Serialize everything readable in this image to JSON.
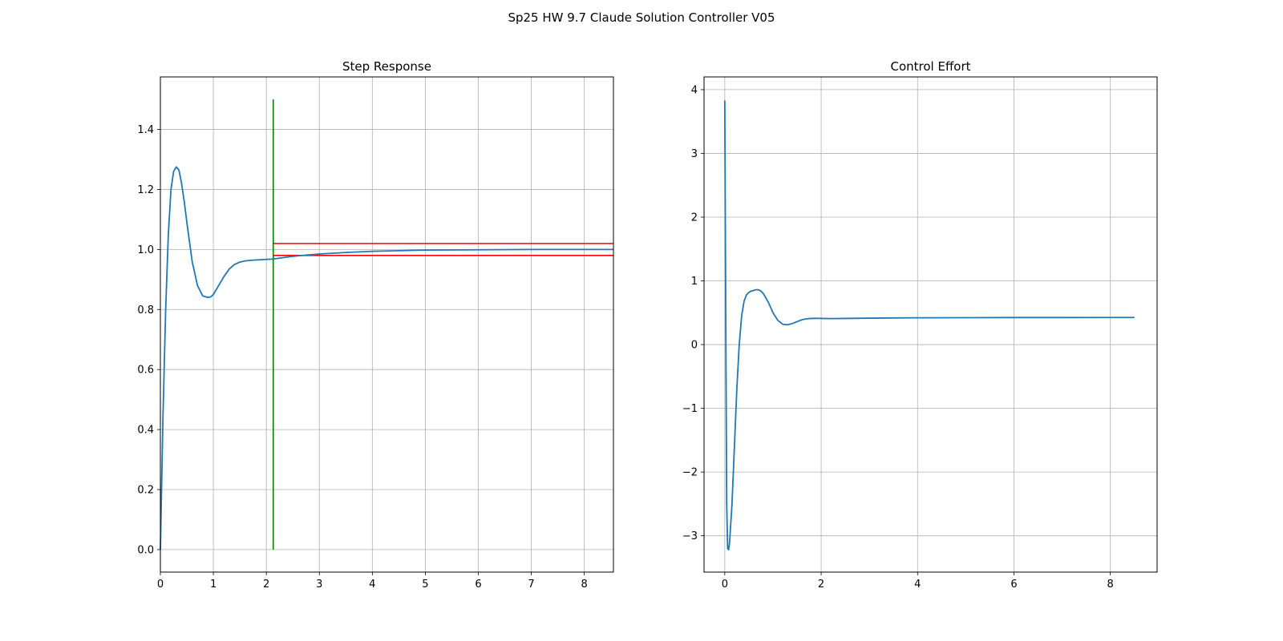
{
  "figure": {
    "suptitle": "Sp25 HW 9.7 Claude Solution Controller V05"
  },
  "chart_data": [
    {
      "type": "line",
      "title": "Step Response",
      "xlabel": "",
      "ylabel": "",
      "xlim": [
        0,
        8.55
      ],
      "ylim": [
        -0.075,
        1.575
      ],
      "xticks": [
        0,
        1,
        2,
        3,
        4,
        5,
        6,
        7,
        8
      ],
      "yticks": [
        0.0,
        0.2,
        0.4,
        0.6,
        0.8,
        1.0,
        1.2,
        1.4
      ],
      "ytick_labels": [
        "0.0",
        "0.2",
        "0.4",
        "0.6",
        "0.8",
        "1.0",
        "1.2",
        "1.4"
      ],
      "grid": true,
      "series": [
        {
          "color": "#1f77b4",
          "x": [
            0,
            0.05,
            0.1,
            0.15,
            0.2,
            0.25,
            0.3,
            0.35,
            0.4,
            0.45,
            0.5,
            0.6,
            0.7,
            0.8,
            0.9,
            0.95,
            1.0,
            1.1,
            1.2,
            1.3,
            1.4,
            1.5,
            1.6,
            1.7,
            1.8,
            1.9,
            2.0,
            2.1,
            2.2,
            2.4,
            2.6,
            2.8,
            3.0,
            3.5,
            4.0,
            4.5,
            5.0,
            6.0,
            7.0,
            8.0,
            8.55
          ],
          "y": [
            0.0,
            0.45,
            0.8,
            1.05,
            1.2,
            1.26,
            1.275,
            1.265,
            1.22,
            1.16,
            1.09,
            0.96,
            0.88,
            0.845,
            0.84,
            0.842,
            0.85,
            0.88,
            0.91,
            0.935,
            0.95,
            0.958,
            0.962,
            0.964,
            0.965,
            0.966,
            0.967,
            0.968,
            0.97,
            0.975,
            0.979,
            0.982,
            0.985,
            0.99,
            0.994,
            0.996,
            0.998,
            0.999,
            1.0,
            1.0,
            1.0
          ]
        }
      ],
      "markers": {
        "settling_time_line": {
          "x": 2.13,
          "y_from": 0.0,
          "y_to": 1.5,
          "color": "#008000"
        },
        "band_lines": [
          {
            "y": 1.02,
            "x_from": 2.13,
            "x_to": 8.55,
            "color": "#ff0000"
          },
          {
            "y": 0.98,
            "x_from": 2.13,
            "x_to": 8.55,
            "color": "#ff0000"
          }
        ]
      }
    },
    {
      "type": "line",
      "title": "Control Effort",
      "xlabel": "",
      "ylabel": "",
      "xlim": [
        -0.43,
        8.97
      ],
      "ylim": [
        -3.57,
        4.2
      ],
      "xticks": [
        0,
        2,
        4,
        6,
        8
      ],
      "yticks": [
        -3,
        -2,
        -1,
        0,
        1,
        2,
        3,
        4
      ],
      "ytick_labels": [
        "−3",
        "−2",
        "−1",
        "0",
        "1",
        "2",
        "3",
        "4"
      ],
      "grid": true,
      "series": [
        {
          "color": "#1f77b4",
          "x": [
            0,
            0.02,
            0.04,
            0.06,
            0.08,
            0.1,
            0.15,
            0.2,
            0.25,
            0.3,
            0.35,
            0.4,
            0.45,
            0.5,
            0.55,
            0.6,
            0.65,
            0.7,
            0.75,
            0.8,
            0.9,
            1.0,
            1.1,
            1.2,
            1.3,
            1.35,
            1.4,
            1.5,
            1.6,
            1.7,
            1.8,
            1.9,
            2.0,
            2.2,
            2.5,
            3.0,
            3.5,
            4.0,
            5.0,
            6.0,
            7.0,
            8.0,
            8.5
          ],
          "y": [
            3.83,
            0.5,
            -2.5,
            -3.2,
            -3.22,
            -3.1,
            -2.5,
            -1.6,
            -0.7,
            0.0,
            0.45,
            0.68,
            0.78,
            0.82,
            0.84,
            0.85,
            0.86,
            0.86,
            0.84,
            0.8,
            0.67,
            0.5,
            0.38,
            0.32,
            0.31,
            0.32,
            0.33,
            0.36,
            0.39,
            0.405,
            0.41,
            0.412,
            0.41,
            0.408,
            0.41,
            0.415,
            0.418,
            0.42,
            0.422,
            0.424,
            0.424,
            0.425,
            0.425
          ]
        }
      ]
    }
  ]
}
